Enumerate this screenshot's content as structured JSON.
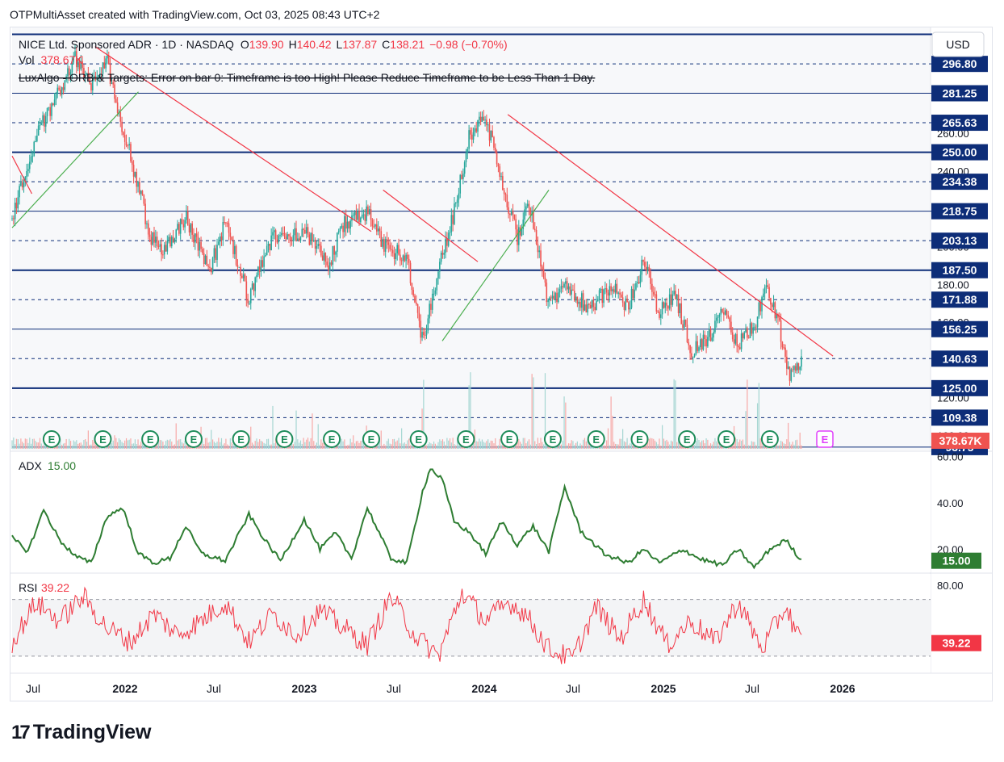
{
  "header": {
    "text": "OTPMultiAsset created with TradingView.com, Oct 03, 2025 08:43 UTC+2"
  },
  "brand": {
    "name": "TradingView",
    "mark": "17"
  },
  "currency": "USD",
  "legend": {
    "symbol": "NICE Ltd. Sponsored ADR · 1D · NASDAQ",
    "o_label": "O",
    "o_val": "139.90",
    "h_label": "H",
    "h_val": "140.42",
    "l_label": "L",
    "l_val": "137.87",
    "c_label": "C",
    "c_val": "138.21",
    "change": "−0.98 (−0.70%)",
    "vol_label": "Vol",
    "vol_val": "378.67K",
    "indicator_error": "LuxAlgo - ORB & Targets: Error on bar 0: Timeframe is too High! Please Reduce Timeframe to be Less Than 1 Day."
  },
  "colors": {
    "up": "#26a69a",
    "down": "#ef5350",
    "navy": "#0d2d78",
    "adx": "#2e7d32",
    "rsi": "#f23645",
    "trend_red": "#f23645",
    "trend_green": "#4caf50"
  },
  "chart_data": [
    {
      "type": "candlestick",
      "title": "NICE Ltd. Sponsored ADR · 1D · NASDAQ",
      "x_ticks": [
        "Jul",
        "2022",
        "Jul",
        "2023",
        "Jul",
        "2024",
        "Jul",
        "2025",
        "Jul",
        "2026"
      ],
      "y_ticks": [
        "100.00",
        "120.00",
        "140.00",
        "160.00",
        "180.00",
        "200.00",
        "220.00",
        "240.00",
        "260.00",
        "280.00",
        "300.00"
      ],
      "ylim": [
        92,
        305
      ],
      "price_levels": [
        {
          "value": 296.8,
          "label": "296.80",
          "style": "dashed"
        },
        {
          "value": 281.25,
          "label": "281.25",
          "style": "thin"
        },
        {
          "value": 265.63,
          "label": "265.63",
          "style": "dashed"
        },
        {
          "value": 250.0,
          "label": "250.00",
          "style": "bold"
        },
        {
          "value": 234.38,
          "label": "234.38",
          "style": "dashed"
        },
        {
          "value": 218.75,
          "label": "218.75",
          "style": "thin"
        },
        {
          "value": 203.13,
          "label": "203.13",
          "style": "dashed"
        },
        {
          "value": 187.5,
          "label": "187.50",
          "style": "bold"
        },
        {
          "value": 171.88,
          "label": "171.88",
          "style": "dashed"
        },
        {
          "value": 156.25,
          "label": "156.25",
          "style": "thin"
        },
        {
          "value": 140.63,
          "label": "140.63",
          "style": "dashed"
        },
        {
          "value": 125.0,
          "label": "125.00",
          "style": "bold"
        },
        {
          "value": 109.38,
          "label": "109.38",
          "style": "dashed"
        },
        {
          "value": 93.75,
          "label": "93.75",
          "style": "thin"
        }
      ],
      "top_level": {
        "value": 312.5,
        "style": "bold"
      },
      "anchors_t": [
        0,
        0.03,
        0.08,
        0.1,
        0.12,
        0.14,
        0.16,
        0.175,
        0.19,
        0.22,
        0.25,
        0.27,
        0.3,
        0.33,
        0.37,
        0.4,
        0.42,
        0.45,
        0.47,
        0.5,
        0.52,
        0.54,
        0.56,
        0.58,
        0.6,
        0.62,
        0.64,
        0.655,
        0.68,
        0.7,
        0.73,
        0.76,
        0.78,
        0.8,
        0.82,
        0.84,
        0.86,
        0.88,
        0.9,
        0.92,
        0.94,
        0.955,
        0.97,
        0.985,
        1.0
      ],
      "anchors_price": [
        215,
        258,
        300,
        285,
        298,
        263,
        232,
        205,
        198,
        215,
        188,
        212,
        172,
        205,
        208,
        190,
        212,
        218,
        200,
        195,
        150,
        188,
        218,
        260,
        268,
        235,
        205,
        225,
        168,
        180,
        168,
        178,
        168,
        192,
        165,
        175,
        145,
        150,
        165,
        148,
        158,
        178,
        162,
        130,
        138.21
      ],
      "volume": {
        "last": "378.67K",
        "spikes_t": [
          0.33,
          0.36,
          0.38,
          0.52,
          0.58,
          0.66,
          0.675,
          0.7,
          0.76,
          0.84,
          0.93,
          0.945
        ]
      },
      "earnings_t": [
        0.05,
        0.115,
        0.175,
        0.23,
        0.29,
        0.345,
        0.405,
        0.455,
        0.515,
        0.575,
        0.63,
        0.685,
        0.74,
        0.795,
        0.855,
        0.905,
        0.96
      ],
      "earnings_label": "E",
      "upcoming_earnings_label": "E",
      "trendlines": [
        {
          "color": "red",
          "t1": 0.0,
          "p1": 248,
          "t2": 0.025,
          "p2": 228
        },
        {
          "color": "red",
          "t1": 0.105,
          "p1": 306,
          "t2": 0.455,
          "p2": 208
        },
        {
          "color": "red",
          "t1": 0.47,
          "p1": 230,
          "t2": 0.59,
          "p2": 192
        },
        {
          "color": "red",
          "t1": 0.628,
          "p1": 270,
          "t2": 1.04,
          "p2": 142
        },
        {
          "color": "green",
          "t1": 0.0,
          "p1": 210,
          "t2": 0.16,
          "p2": 282
        },
        {
          "color": "green",
          "t1": 0.545,
          "p1": 150,
          "t2": 0.68,
          "p2": 230
        }
      ]
    },
    {
      "type": "line",
      "title": "ADX",
      "series": [
        {
          "name": "ADX",
          "last": "15.00"
        }
      ],
      "ylim": [
        10,
        62
      ],
      "y_ticks": [
        "20.00",
        "40.00",
        "60.00"
      ],
      "anchors_t": [
        0,
        0.02,
        0.04,
        0.06,
        0.08,
        0.1,
        0.12,
        0.14,
        0.16,
        0.18,
        0.2,
        0.22,
        0.24,
        0.27,
        0.3,
        0.32,
        0.34,
        0.37,
        0.39,
        0.41,
        0.43,
        0.45,
        0.48,
        0.5,
        0.52,
        0.53,
        0.545,
        0.56,
        0.58,
        0.6,
        0.62,
        0.64,
        0.66,
        0.68,
        0.7,
        0.72,
        0.75,
        0.78,
        0.8,
        0.82,
        0.85,
        0.87,
        0.9,
        0.92,
        0.94,
        0.96,
        0.98,
        1.0
      ],
      "anchors_y": [
        25,
        19,
        37,
        24,
        17,
        14,
        34,
        38,
        18,
        14,
        16,
        30,
        18,
        15,
        35,
        24,
        15,
        33,
        20,
        27,
        16,
        38,
        16,
        14,
        45,
        55,
        50,
        32,
        27,
        18,
        32,
        22,
        30,
        19,
        47,
        28,
        18,
        14,
        20,
        14,
        20,
        16,
        13,
        20,
        12,
        20,
        24,
        15
      ],
      "last_label": "15.00"
    },
    {
      "type": "line",
      "title": "RSI",
      "series": [
        {
          "name": "RSI",
          "last": "39.22"
        }
      ],
      "ylim": [
        18,
        88
      ],
      "y_ticks": [
        "80.00"
      ],
      "bands": [
        70,
        30
      ],
      "anchors_t": [
        0,
        0.03,
        0.06,
        0.09,
        0.12,
        0.15,
        0.18,
        0.21,
        0.24,
        0.27,
        0.3,
        0.33,
        0.36,
        0.39,
        0.42,
        0.45,
        0.48,
        0.51,
        0.54,
        0.57,
        0.6,
        0.63,
        0.65,
        0.68,
        0.71,
        0.74,
        0.77,
        0.8,
        0.83,
        0.86,
        0.89,
        0.92,
        0.95,
        0.98,
        1.0
      ],
      "anchors_y": [
        40,
        68,
        55,
        72,
        50,
        40,
        60,
        45,
        55,
        68,
        40,
        60,
        45,
        62,
        50,
        38,
        72,
        45,
        30,
        75,
        55,
        68,
        60,
        35,
        28,
        65,
        42,
        70,
        38,
        55,
        40,
        68,
        35,
        65,
        39.22
      ],
      "last_label": "39.22"
    }
  ]
}
